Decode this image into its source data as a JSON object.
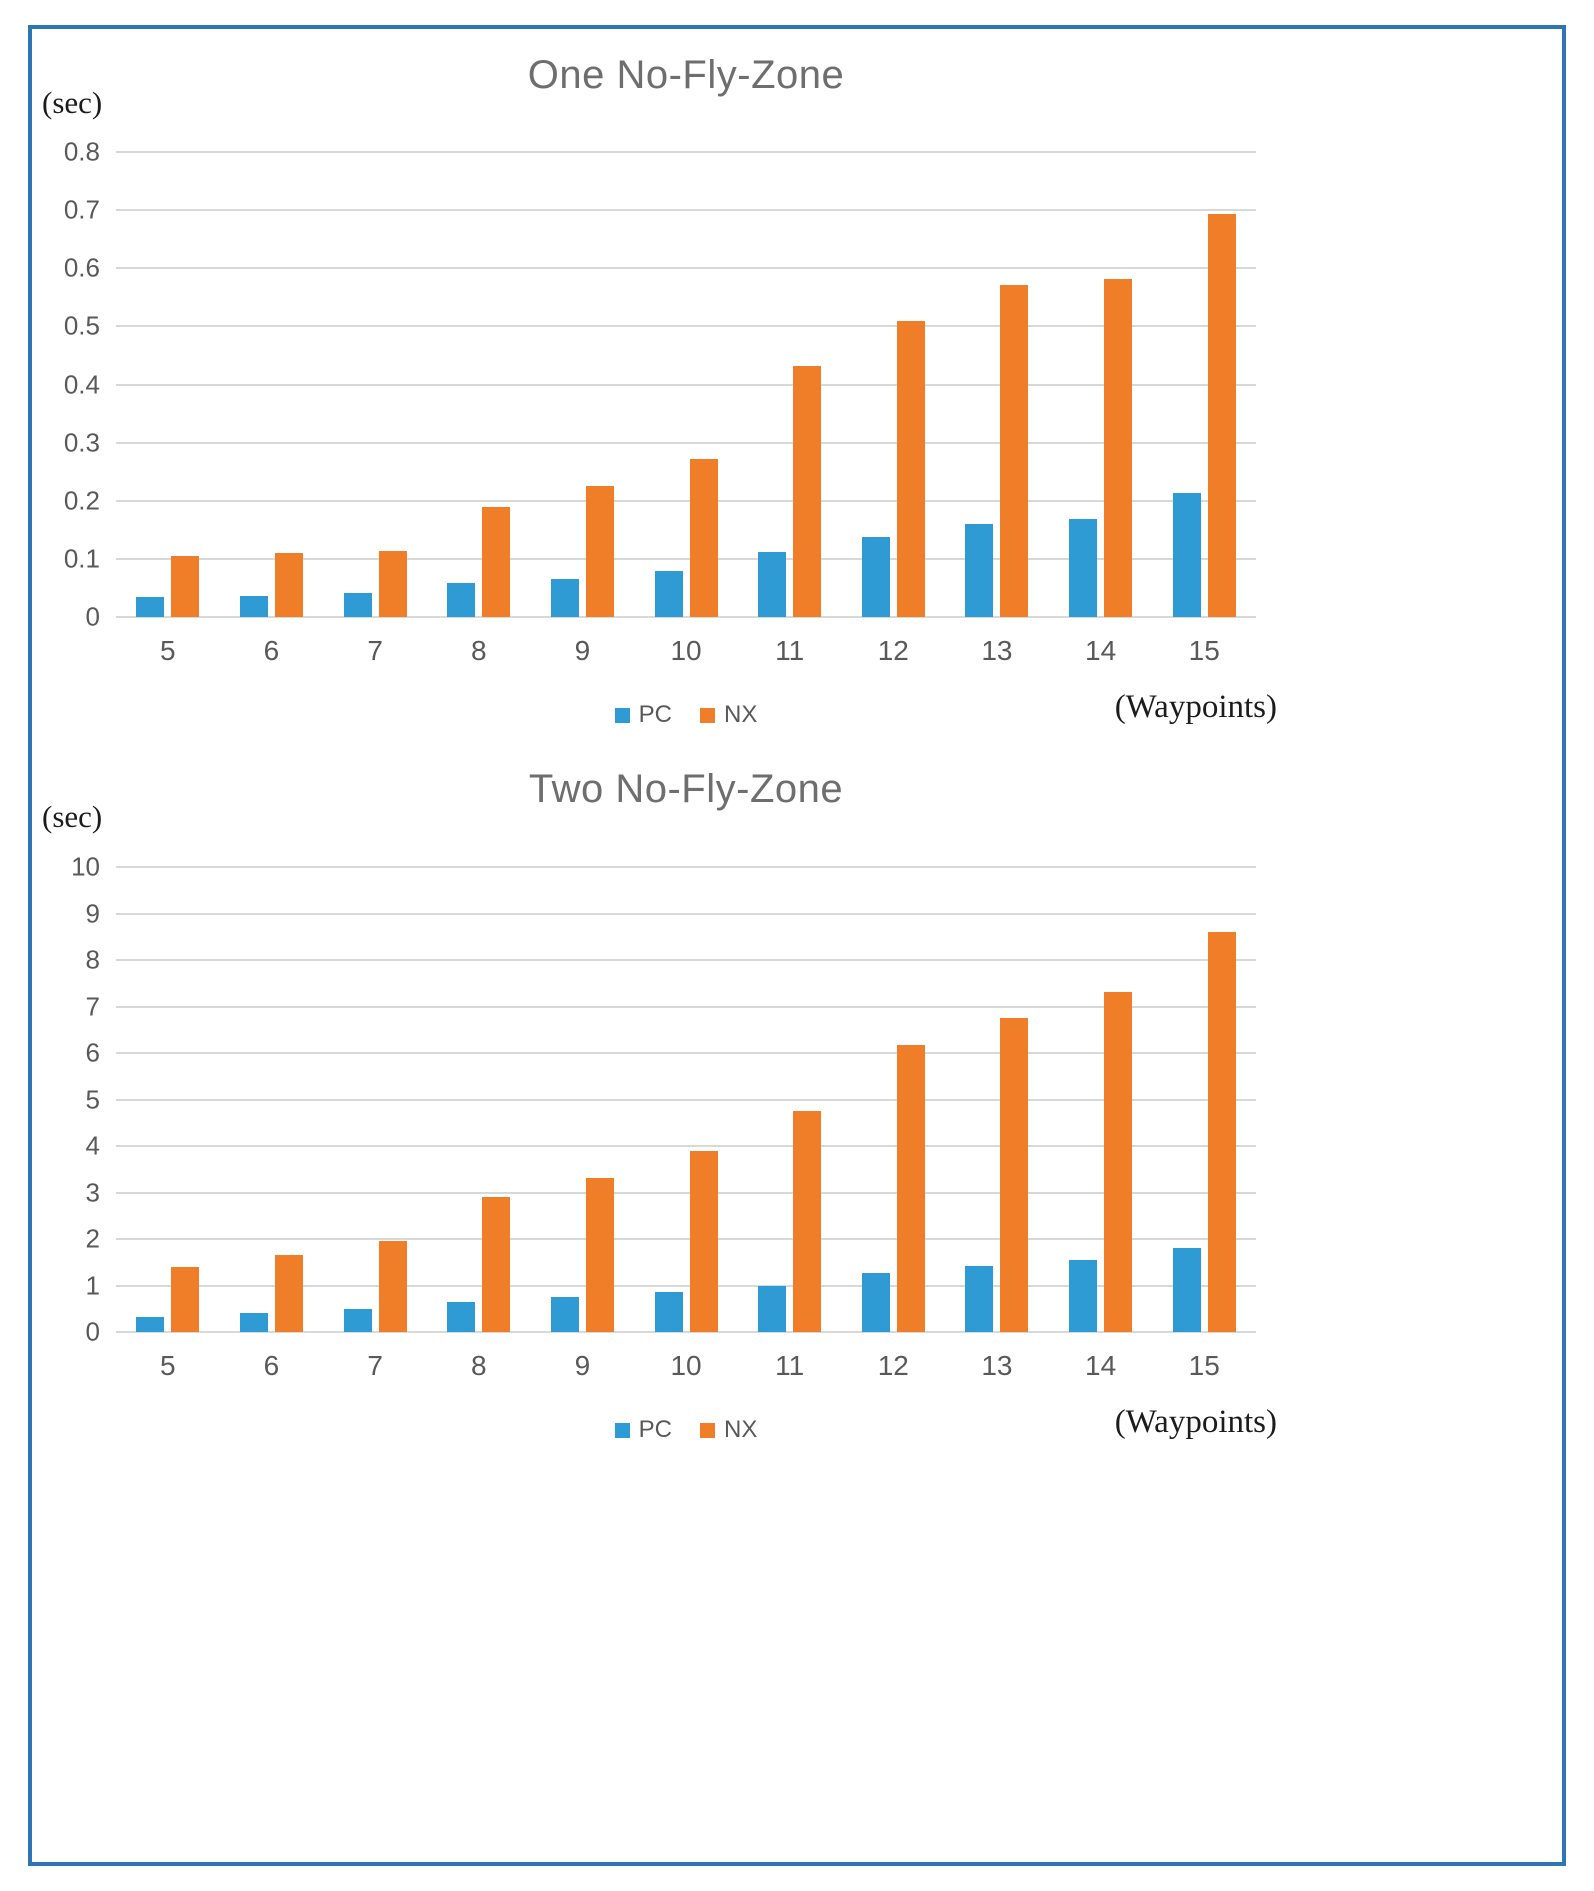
{
  "frame": {
    "border_color": "#2E75B6"
  },
  "chart_data": [
    {
      "type": "bar",
      "title": "One No-Fly-Zone",
      "ylabel": "(sec)",
      "xlabel": "(Waypoints)",
      "categories": [
        "5",
        "6",
        "7",
        "8",
        "9",
        "10",
        "11",
        "12",
        "13",
        "14",
        "15"
      ],
      "series": [
        {
          "name": "PC",
          "color": "#2E9BD5",
          "values": [
            0.035,
            0.037,
            0.042,
            0.058,
            0.066,
            0.08,
            0.112,
            0.138,
            0.16,
            0.168,
            0.213
          ]
        },
        {
          "name": "NX",
          "color": "#F07D28",
          "values": [
            0.105,
            0.11,
            0.114,
            0.19,
            0.225,
            0.272,
            0.432,
            0.51,
            0.572,
            0.581,
            0.693
          ]
        }
      ],
      "ylim": [
        0,
        0.8
      ],
      "ytick_step": 0.1,
      "grid": true,
      "legend_position": "bottom-center"
    },
    {
      "type": "bar",
      "title": "Two No-Fly-Zone",
      "ylabel": "(sec)",
      "xlabel": "(Waypoints)",
      "categories": [
        "5",
        "6",
        "7",
        "8",
        "9",
        "10",
        "11",
        "12",
        "13",
        "14",
        "15"
      ],
      "series": [
        {
          "name": "PC",
          "color": "#2E9BD5",
          "values": [
            0.32,
            0.4,
            0.5,
            0.65,
            0.75,
            0.86,
            1.0,
            1.27,
            1.42,
            1.55,
            1.8
          ]
        },
        {
          "name": "NX",
          "color": "#F07D28",
          "values": [
            1.4,
            1.65,
            1.95,
            2.9,
            3.32,
            3.9,
            4.75,
            6.17,
            6.75,
            7.32,
            8.6
          ]
        }
      ],
      "ylim": [
        0,
        10
      ],
      "ytick_step": 1,
      "grid": true,
      "legend_position": "bottom-center"
    }
  ]
}
